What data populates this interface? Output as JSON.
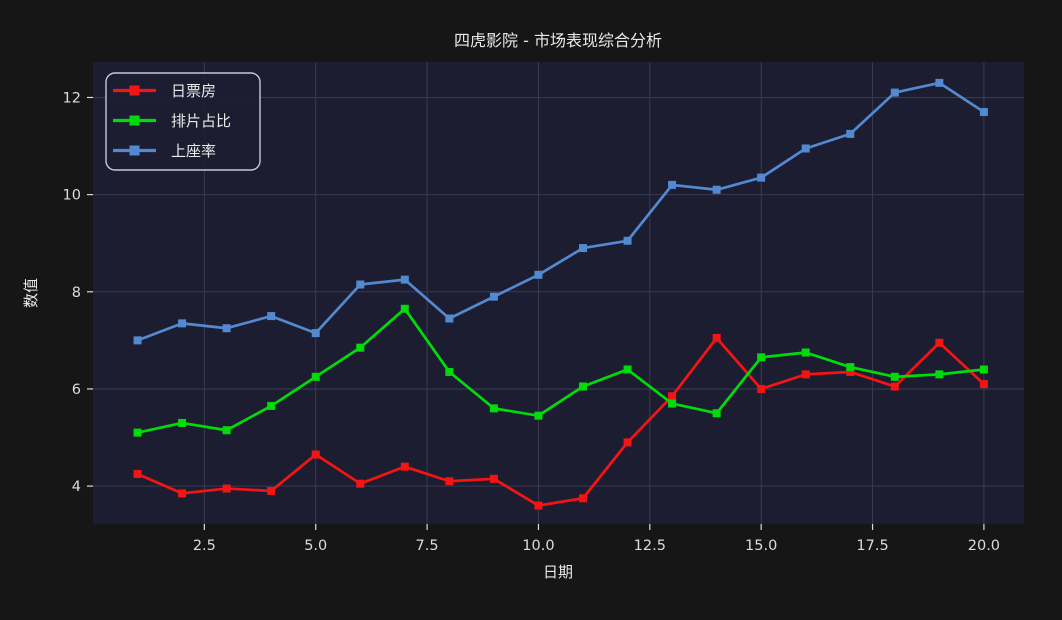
{
  "colors": {
    "figure_bg": "#161616",
    "axes_bg": "#1d1d31",
    "grid": "#3a3a52",
    "text": "#e9e9e9",
    "tick_text": "#dcdcdc",
    "legend_border": "#c9c9d0",
    "series_red": "#f51414",
    "series_green": "#00dc0a",
    "series_blue": "#5289d0"
  },
  "chart_data": {
    "type": "line",
    "title": "四虎影院 - 市场表现综合分析",
    "xlabel": "日期",
    "ylabel": "数值",
    "x": [
      1,
      2,
      3,
      4,
      5,
      6,
      7,
      8,
      9,
      10,
      11,
      12,
      13,
      14,
      15,
      16,
      17,
      18,
      19,
      20
    ],
    "series": [
      {
        "name": "日票房",
        "color": "#f51414",
        "marker": "square",
        "values": [
          4.25,
          3.85,
          3.95,
          3.9,
          4.65,
          4.05,
          4.4,
          4.1,
          4.15,
          3.6,
          3.75,
          4.9,
          5.85,
          7.05,
          6.0,
          6.3,
          6.35,
          6.05,
          6.95,
          6.1
        ]
      },
      {
        "name": "排片占比",
        "color": "#00dc0a",
        "marker": "square",
        "values": [
          5.1,
          5.3,
          5.15,
          5.65,
          6.25,
          6.85,
          7.65,
          6.35,
          5.6,
          5.45,
          6.05,
          6.4,
          5.7,
          5.5,
          6.65,
          6.75,
          6.45,
          6.25,
          6.3,
          6.4
        ]
      },
      {
        "name": "上座率",
        "color": "#5289d0",
        "marker": "square",
        "values": [
          7.0,
          7.35,
          7.25,
          7.5,
          7.15,
          8.15,
          8.25,
          7.45,
          7.9,
          8.35,
          8.9,
          9.05,
          10.2,
          10.1,
          10.35,
          10.95,
          11.25,
          12.1,
          12.3,
          11.7
        ]
      }
    ],
    "xticks": [
      2.5,
      5.0,
      7.5,
      10.0,
      12.5,
      15.0,
      17.5,
      20.0
    ],
    "xtick_labels": [
      "2.5",
      "5.0",
      "7.5",
      "10.0",
      "12.5",
      "15.0",
      "17.5",
      "20.0"
    ],
    "yticks": [
      4,
      6,
      8,
      10,
      12
    ],
    "ytick_labels": [
      "4",
      "6",
      "8",
      "10",
      "12"
    ],
    "xlim": [
      0,
      20.9
    ],
    "ylim": [
      3.22,
      12.73
    ],
    "grid": true,
    "legend_position": "upper-left"
  }
}
